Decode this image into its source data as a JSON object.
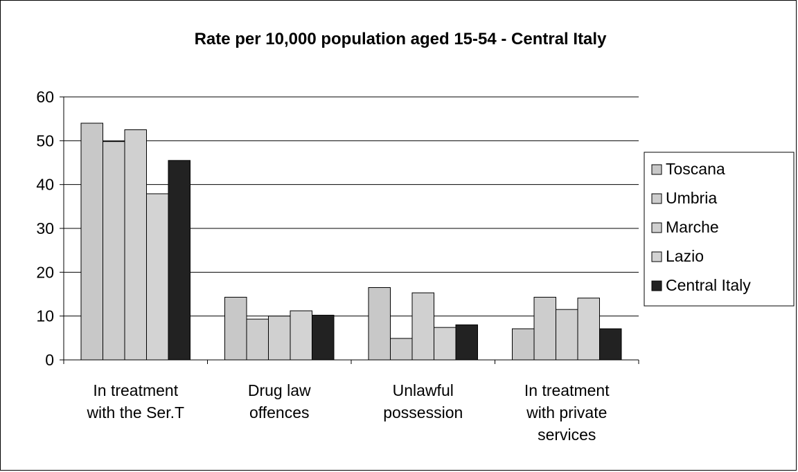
{
  "chart_data": {
    "type": "bar",
    "title": "Rate per 10,000 population aged 15-54 - Central Italy",
    "xlabel": "",
    "ylabel": "",
    "ylim": [
      0,
      60
    ],
    "yticks": [
      0,
      10,
      20,
      30,
      40,
      50,
      60
    ],
    "grid": true,
    "legend_position": "right",
    "categories": [
      [
        "In treatment",
        "with the Ser.T"
      ],
      [
        "Drug law",
        "offences"
      ],
      [
        "Unlawful",
        "possession"
      ],
      [
        "In treatment",
        "with private",
        "services"
      ]
    ],
    "series": [
      {
        "name": "Toscana",
        "color": "#c8c8c8",
        "values": [
          54.0,
          14.3,
          16.5,
          7.1
        ]
      },
      {
        "name": "Umbria",
        "color": "#cdcdcd",
        "values": [
          49.8,
          9.3,
          4.9,
          14.3
        ]
      },
      {
        "name": "Marche",
        "color": "#d0d0d0",
        "values": [
          52.5,
          10.0,
          15.3,
          11.5
        ]
      },
      {
        "name": "Lazio",
        "color": "#d3d3d3",
        "values": [
          37.9,
          11.2,
          7.4,
          14.1
        ]
      },
      {
        "name": "Central Italy",
        "color": "#222222",
        "values": [
          45.5,
          10.2,
          8.0,
          7.1
        ]
      }
    ]
  }
}
